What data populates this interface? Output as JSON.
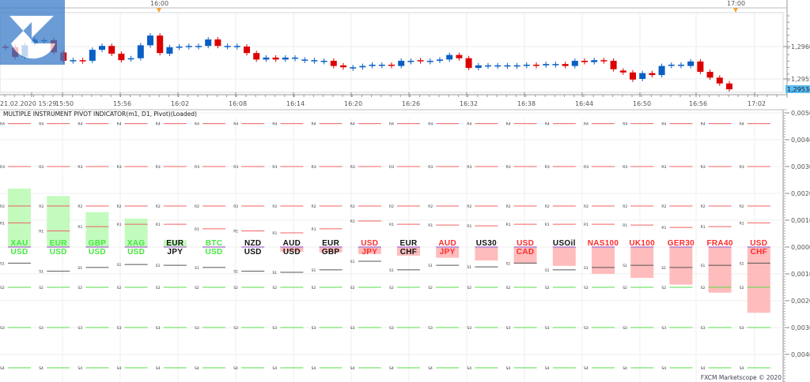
{
  "price_chart": {
    "top_time_markers": [
      "16:00",
      "17:00"
    ],
    "time_labels": [
      "21.02.2020 15:29",
      "15:50",
      "15:56",
      "16:02",
      "16:08",
      "16:14",
      "16:20",
      "16:26",
      "16:32",
      "16:38",
      "16:44",
      "16:50",
      "16:56",
      "17:02"
    ],
    "price_labels": [
      "1,2960",
      "1,2955"
    ],
    "current_price": "1,29534",
    "colors": {
      "bull": "#0a5fc4",
      "bear": "#dd0000",
      "current_price_bg": "#5bbcf0"
    },
    "candles_open_close": [
      [
        1.296,
        1.29599
      ],
      [
        1.29599,
        1.29584
      ],
      [
        1.29584,
        1.29602
      ],
      [
        1.29605,
        1.29611
      ],
      [
        1.2961,
        1.2961
      ],
      [
        1.2961,
        1.29591
      ],
      [
        1.29591,
        1.29578
      ],
      [
        1.29579,
        1.29579
      ],
      [
        1.29579,
        1.29578
      ],
      [
        1.29578,
        1.29595
      ],
      [
        1.29595,
        1.29601
      ],
      [
        1.29601,
        1.29589
      ],
      [
        1.29589,
        1.29579
      ],
      [
        1.29582,
        1.29582
      ],
      [
        1.29582,
        1.29602
      ],
      [
        1.29602,
        1.29617
      ],
      [
        1.29617,
        1.2959
      ],
      [
        1.29589,
        1.29599
      ],
      [
        1.296,
        1.296
      ],
      [
        1.29601,
        1.29601
      ],
      [
        1.29601,
        1.29601
      ],
      [
        1.29601,
        1.29611
      ],
      [
        1.29611,
        1.29601
      ],
      [
        1.29601,
        1.29601
      ],
      [
        1.29601,
        1.29601
      ],
      [
        1.296,
        1.2959
      ],
      [
        1.2959,
        1.2958
      ],
      [
        1.2958,
        1.29583
      ],
      [
        1.29583,
        1.2958
      ],
      [
        1.2958,
        1.29583
      ],
      [
        1.29583,
        1.29583
      ],
      [
        1.2958,
        1.2958
      ],
      [
        1.29579,
        1.29579
      ],
      [
        1.29578,
        1.29578
      ],
      [
        1.29578,
        1.2957
      ],
      [
        1.29571,
        1.29568
      ],
      [
        1.29568,
        1.29568
      ],
      [
        1.29568,
        1.2957
      ],
      [
        1.2957,
        1.29572
      ],
      [
        1.29572,
        1.29572
      ],
      [
        1.29572,
        1.29571
      ],
      [
        1.2957,
        1.29578
      ],
      [
        1.29578,
        1.29578
      ],
      [
        1.29579,
        1.29578
      ],
      [
        1.29578,
        1.29578
      ],
      [
        1.29578,
        1.2958
      ],
      [
        1.2958,
        1.29587
      ],
      [
        1.29587,
        1.29582
      ],
      [
        1.29582,
        1.29567
      ],
      [
        1.29567,
        1.29571
      ],
      [
        1.29571,
        1.29571
      ],
      [
        1.29571,
        1.29571
      ],
      [
        1.29571,
        1.29571
      ],
      [
        1.29571,
        1.29571
      ],
      [
        1.29571,
        1.29572
      ],
      [
        1.29572,
        1.29571
      ],
      [
        1.29571,
        1.29573
      ],
      [
        1.29573,
        1.29573
      ],
      [
        1.29573,
        1.2957
      ],
      [
        1.2957,
        1.29578
      ],
      [
        1.29578,
        1.29576
      ],
      [
        1.29576,
        1.29579
      ],
      [
        1.29579,
        1.29578
      ],
      [
        1.29578,
        1.29565
      ],
      [
        1.29563,
        1.2956
      ],
      [
        1.2956,
        1.29549
      ],
      [
        1.2955,
        1.29559
      ],
      [
        1.29559,
        1.29556
      ],
      [
        1.29556,
        1.2957
      ],
      [
        1.29572,
        1.29572
      ],
      [
        1.29572,
        1.29572
      ],
      [
        1.2957,
        1.29577
      ],
      [
        1.29577,
        1.29561
      ],
      [
        1.29561,
        1.29552
      ],
      [
        1.29552,
        1.29543
      ],
      [
        1.29543,
        1.29534
      ]
    ]
  },
  "indicator": {
    "title": "MULTIPLE INSTRUMENT PIVOT INDICATOR(m1, D1, Pivot)(Loaded)",
    "axis_labels": [
      "0,0050",
      "0,0040",
      "0,0030",
      "0,0020",
      "0,0010",
      "0,0000",
      "0,0010",
      "0,0020",
      "0,0030",
      "0,0040"
    ],
    "pivot_labels": {
      "r4": "R4",
      "r3": "R3",
      "r2": "R2",
      "r1": "R1",
      "s1": "S1",
      "s2": "S2",
      "s3": "S3",
      "s4": "S4"
    },
    "common_levels": {
      "r4": 0.0046,
      "r3": 0.003,
      "r2": 0.00153,
      "s2": -0.0015,
      "s3": -0.003,
      "s4": -0.0045
    },
    "colors": {
      "positive_bar": "#c3fbbe",
      "negative_bar": "#ffbcbc",
      "r_line": "#f06060",
      "s1_line": "#555555",
      "s_line": "#55dd44",
      "green_text": "#44e83c",
      "red_text": "#ff2a2a",
      "black_text": "#111111",
      "separator": "#b080d0"
    },
    "instruments": [
      {
        "line1": "XAU",
        "line2": "USD",
        "value": 0.00218,
        "r1": 0.0009,
        "s1": -0.0006,
        "c1": "green",
        "c2": "green"
      },
      {
        "line1": "EUR",
        "line2": "USD",
        "value": 0.0019,
        "r1": 0.0006,
        "s1": -0.0009,
        "c1": "green",
        "c2": "green"
      },
      {
        "line1": "GBP",
        "line2": "USD",
        "value": 0.0013,
        "r1": 0.00076,
        "s1": -0.00076,
        "c1": "green",
        "c2": "green"
      },
      {
        "line1": "XAG",
        "line2": "USD",
        "value": 0.00106,
        "r1": 0.00085,
        "s1": -0.00065,
        "c1": "green",
        "c2": "green"
      },
      {
        "line1": "EUR",
        "line2": "JPY",
        "value": 0.00026,
        "r1": 0.00085,
        "s1": -0.00068,
        "c1": "black",
        "c2": "black"
      },
      {
        "line1": "BTC",
        "line2": "USD",
        "value": 0.0,
        "r1": 0.00068,
        "s1": -0.00076,
        "c1": "green",
        "c2": "green"
      },
      {
        "line1": "NZD",
        "line2": "USD",
        "value": 0.0,
        "r1": 0.0006,
        "s1": -0.0009,
        "c1": "black",
        "c2": "black"
      },
      {
        "line1": "AUD",
        "line2": "USD",
        "value": -0.00018,
        "r1": 0.00053,
        "s1": -0.00094,
        "c1": "black",
        "c2": "black"
      },
      {
        "line1": "EUR",
        "line2": "GBP",
        "value": -0.0002,
        "r1": 0.00068,
        "s1": -0.00085,
        "c1": "black",
        "c2": "black"
      },
      {
        "line1": "USD",
        "line2": "JPY",
        "value": -0.00026,
        "r1": 0.00097,
        "s1": -0.00053,
        "c1": "red",
        "c2": "red"
      },
      {
        "line1": "EUR",
        "line2": "CHF",
        "value": -0.00032,
        "r1": 0.00085,
        "s1": -0.00085,
        "c1": "black",
        "c2": "black"
      },
      {
        "line1": "AUD",
        "line2": "JPY",
        "value": -0.0004,
        "r1": 0.00082,
        "s1": -0.00068,
        "c1": "red",
        "c2": "red"
      },
      {
        "line1": "US30",
        "line2": "",
        "value": -0.0005,
        "r1": 0.00079,
        "s1": -0.00074,
        "c1": "black",
        "c2": "black"
      },
      {
        "line1": "USD",
        "line2": "CAD",
        "value": -0.0006,
        "r1": 0.00085,
        "s1": -0.0006,
        "c1": "red",
        "c2": "red"
      },
      {
        "line1": "USOil",
        "line2": "",
        "value": -0.0007,
        "r1": 0.00085,
        "s1": -0.00085,
        "c1": "black",
        "c2": "black"
      },
      {
        "line1": "NAS100",
        "line2": "",
        "value": -0.001,
        "r1": 0.00085,
        "s1": -0.00076,
        "c1": "red",
        "c2": "red"
      },
      {
        "line1": "UK100",
        "line2": "",
        "value": -0.00115,
        "r1": 0.00082,
        "s1": -0.00068,
        "c1": "red",
        "c2": "red"
      },
      {
        "line1": "GER30",
        "line2": "",
        "value": -0.0014,
        "r1": 0.00073,
        "s1": -0.00076,
        "c1": "red",
        "c2": "red"
      },
      {
        "line1": "FRA40",
        "line2": "",
        "value": -0.0017,
        "r1": 0.00076,
        "s1": -0.00068,
        "c1": "red",
        "c2": "red"
      },
      {
        "line1": "USD",
        "line2": "CHF",
        "value": -0.00245,
        "r1": 0.0009,
        "s1": -0.0006,
        "c1": "red",
        "c2": "red"
      }
    ]
  },
  "footer": {
    "copyright": "FXCM Marketscope © 2020"
  }
}
